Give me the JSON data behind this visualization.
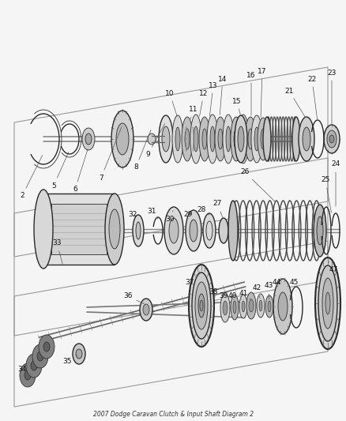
{
  "title": "2007 Dodge Caravan Clutch & Input Shaft Diagram 2",
  "bg_color": "#f5f5f5",
  "line_color": "#2a2a2a",
  "label_color": "#111111",
  "fig_width": 4.39,
  "fig_height": 5.33,
  "dpi": 100,
  "font_size": 6.5,
  "leader_color": "#555555",
  "gray_dark": "#444444",
  "gray_mid": "#888888",
  "gray_light": "#cccccc",
  "gray_lighter": "#e0e0e0",
  "white": "#ffffff"
}
